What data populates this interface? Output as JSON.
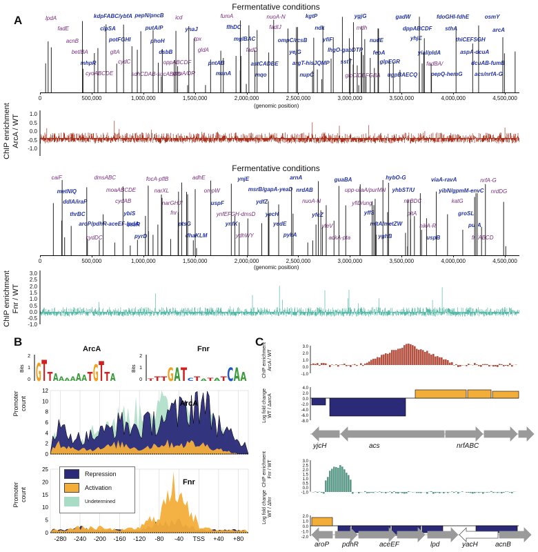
{
  "panels": {
    "a": "A",
    "b": "B",
    "c": "C"
  },
  "panel_a": {
    "title_top": "Fermentative conditions",
    "title_bottom": "Fermentative conditions",
    "xlabel": "(genomic position)",
    "ylabel_arca": "ChIP enrichment\nArcA / WT",
    "ylabel_fnr": "ChIP enrichment\nFnr / WT",
    "xticks": [
      "0",
      "500,000",
      "1,000,000",
      "1,500,000",
      "2,000,000",
      "2,500,000",
      "3,000,000",
      "3,500,000",
      "4,000,000",
      "4,500,000"
    ],
    "arca_yticks": [
      "1.0",
      "0.5",
      "0.0",
      "-0.5",
      "-1.0"
    ],
    "fnr_yticks": [
      "3.0",
      "2.5",
      "2.0",
      "1.5",
      "1.0",
      "0.5",
      "0.0",
      "-0.5",
      "-1.0"
    ],
    "arca_genes": [
      {
        "t": "lpdA",
        "s": "p"
      },
      {
        "t": "fadE",
        "s": "p"
      },
      {
        "t": "acnB",
        "s": "p"
      },
      {
        "t": "betIBA",
        "s": "p"
      },
      {
        "t": "mhpR",
        "s": "b"
      },
      {
        "t": "cyoABCDE",
        "s": "p"
      },
      {
        "t": "kdpFABC/ybfA",
        "s": "b"
      },
      {
        "t": "clpSA",
        "s": "b"
      },
      {
        "t": "potFGHI",
        "s": "b"
      },
      {
        "t": "gltA",
        "s": "p"
      },
      {
        "t": "cydC",
        "s": "p"
      },
      {
        "t": "sdhCDAB-sucABCD",
        "s": "p"
      },
      {
        "t": "pepN/pncB",
        "s": "b"
      },
      {
        "t": "putA/P",
        "s": "b"
      },
      {
        "t": "phoH",
        "s": "b"
      },
      {
        "t": "dsbB",
        "s": "b"
      },
      {
        "t": "oppABCDF",
        "s": "p"
      },
      {
        "t": "puuA/DR",
        "s": "p"
      },
      {
        "t": "icd",
        "s": "p"
      },
      {
        "t": "ynaJ",
        "s": "b"
      },
      {
        "t": "tpx",
        "s": "p"
      },
      {
        "t": "gldA",
        "s": "p"
      },
      {
        "t": "pntAB",
        "s": "b"
      },
      {
        "t": "manA",
        "s": "b"
      },
      {
        "t": "fumA",
        "s": "p"
      },
      {
        "t": "flhDC",
        "s": "b"
      },
      {
        "t": "mglBAC",
        "s": "b"
      },
      {
        "t": "fadD",
        "s": "p"
      },
      {
        "t": "astCADBE",
        "s": "b"
      },
      {
        "t": "mqo",
        "s": "b"
      },
      {
        "t": "nuoA-N",
        "s": "p"
      },
      {
        "t": "fadIJ",
        "s": "p"
      },
      {
        "t": "ompC/rcsB",
        "s": "b"
      },
      {
        "t": "yejG",
        "s": "b"
      },
      {
        "t": "argT-hisJQMP",
        "s": "b"
      },
      {
        "t": "nupC",
        "s": "b"
      },
      {
        "t": "kgtP",
        "s": "b"
      },
      {
        "t": "ndk",
        "s": "b"
      },
      {
        "t": "yfiF",
        "s": "b"
      },
      {
        "t": "lhgO-gabDTP",
        "s": "b"
      },
      {
        "t": "sstT",
        "s": "b"
      },
      {
        "t": "glcC/DEFGBA",
        "s": "p"
      },
      {
        "t": "ygjG",
        "s": "b"
      },
      {
        "t": "mdh",
        "s": "p"
      },
      {
        "t": "nudE",
        "s": "b"
      },
      {
        "t": "feoA",
        "s": "b"
      },
      {
        "t": "glpEGR",
        "s": "b"
      },
      {
        "t": "ugpBAECQ",
        "s": "b"
      },
      {
        "t": "gadW",
        "s": "b"
      },
      {
        "t": "dppABCDF",
        "s": "b"
      },
      {
        "t": "yhjE",
        "s": "b"
      },
      {
        "t": "yiaI/pldA",
        "s": "b"
      },
      {
        "t": "fadBA/",
        "s": "p"
      },
      {
        "t": "pepQ-hemG",
        "s": "b"
      },
      {
        "t": "fdoGHI-fdhE",
        "s": "b"
      },
      {
        "t": "sthA",
        "s": "b"
      },
      {
        "t": "thiCEFSGH",
        "s": "b"
      },
      {
        "t": "aspA-dcuA",
        "s": "b"
      },
      {
        "t": "dcuAB-fumB",
        "s": "b"
      },
      {
        "t": "acs/nrfA-G",
        "s": "b"
      },
      {
        "t": "osmY",
        "s": "b"
      },
      {
        "t": "arcA",
        "s": "b"
      }
    ],
    "fnr_genes": [
      {
        "t": "caiF",
        "s": "p"
      },
      {
        "t": "metNIQ",
        "s": "b"
      },
      {
        "t": "ddlA/iraP",
        "s": "b"
      },
      {
        "t": "thrBC",
        "s": "b"
      },
      {
        "t": "aroP/pdhR-aceEF-lpdA",
        "s": "b"
      },
      {
        "t": "cydDC",
        "s": "p"
      },
      {
        "t": "dmsABC",
        "s": "p"
      },
      {
        "t": "moaABCDE",
        "s": "p"
      },
      {
        "t": "cydAB",
        "s": "p"
      },
      {
        "t": "ybiS",
        "s": "b"
      },
      {
        "t": "bssR",
        "s": "b"
      },
      {
        "t": "pyrD",
        "s": "b"
      },
      {
        "t": "focA-pflB",
        "s": "p"
      },
      {
        "t": "narXL",
        "s": "p"
      },
      {
        "t": "narGHJI",
        "s": "p"
      },
      {
        "t": "fnr",
        "s": "p"
      },
      {
        "t": "ptsG",
        "s": "b"
      },
      {
        "t": "dhaKLM",
        "s": "b"
      },
      {
        "t": "adhE",
        "s": "p"
      },
      {
        "t": "ompW",
        "s": "p"
      },
      {
        "t": "uspF",
        "s": "b"
      },
      {
        "t": "ynfEFGH-dmsD",
        "s": "p"
      },
      {
        "t": "ynfK",
        "s": "b"
      },
      {
        "t": "ydhWY",
        "s": "p"
      },
      {
        "t": "ynjE",
        "s": "b"
      },
      {
        "t": "msrB/gapA-yeaD",
        "s": "b"
      },
      {
        "t": "ydfZ",
        "s": "b"
      },
      {
        "t": "yecH",
        "s": "b"
      },
      {
        "t": "yedE",
        "s": "b"
      },
      {
        "t": "pykA",
        "s": "b"
      },
      {
        "t": "arnA",
        "s": "b"
      },
      {
        "t": "nrdAB",
        "s": "b"
      },
      {
        "t": "nuoA-N",
        "s": "p"
      },
      {
        "t": "yfcZ",
        "s": "b"
      },
      {
        "t": "yfeV",
        "s": "p"
      },
      {
        "t": "ackA-pta",
        "s": "p"
      },
      {
        "t": "guaBA",
        "s": "b"
      },
      {
        "t": "upp-uraA/purMN",
        "s": "p"
      },
      {
        "t": "yfiD/ung",
        "s": "p"
      },
      {
        "t": "yffS",
        "s": "b"
      },
      {
        "t": "mltA/metZW",
        "s": "b"
      },
      {
        "t": "yghB",
        "s": "b"
      },
      {
        "t": "hybO-G",
        "s": "b"
      },
      {
        "t": "yhbST/U",
        "s": "b"
      },
      {
        "t": "nirBDC",
        "s": "p"
      },
      {
        "t": "pitA",
        "s": "p"
      },
      {
        "t": "nikA-R",
        "s": "p"
      },
      {
        "t": "uspB",
        "s": "b"
      },
      {
        "t": "viaA-ravA",
        "s": "b"
      },
      {
        "t": "yibN/gpmM-envC",
        "s": "b"
      },
      {
        "t": "katG",
        "s": "p"
      },
      {
        "t": "groSL",
        "s": "b"
      },
      {
        "t": "purA",
        "s": "b"
      },
      {
        "t": "frdABCD",
        "s": "p"
      },
      {
        "t": "nrfA-G",
        "s": "p"
      },
      {
        "t": "nrdDG",
        "s": "p"
      }
    ]
  },
  "panel_b": {
    "motif_arca": "ArcA",
    "motif_fnr": "Fnr",
    "bits_label": "Bits",
    "motif_yticks": [
      "2",
      "1",
      "0"
    ],
    "chart_arca_title": "ArcA",
    "chart_fnr_title": "Fnr",
    "ylabel": "Promoter\ncount",
    "xticks": [
      "-280",
      "-240",
      "-200",
      "-160",
      "-120",
      "-80",
      "-40",
      "TSS",
      "+40",
      "+80"
    ],
    "arca_yticks": [
      "12",
      "10",
      "8",
      "6",
      "4",
      "2",
      "0"
    ],
    "fnr_yticks": [
      "25",
      "20",
      "15",
      "10",
      "5",
      "0"
    ],
    "legend": {
      "repression": "Repression",
      "activation": "Activation",
      "undetermined": "Undetermined"
    },
    "colors": {
      "repression": "#2b2a78",
      "activation": "#f3ae3a",
      "undetermined": "#a8dcc4"
    }
  },
  "panel_c": {
    "ylab1": "ChIP enrichment\nArcA / WT",
    "ylab2": "Log fold change\nWT / ΔarcA",
    "ylab3": "ChIP enrichment\nFnr / WT",
    "ylab4": "Log fold change\nWT / Δfnr",
    "yticks1": [
      "3.0",
      "2.0",
      "1.0",
      "0.0",
      "-1.0"
    ],
    "yticks2": [
      "4.0",
      "2.0",
      "0.0",
      "-2.0",
      "-4.0",
      "-6.0",
      "-8.0"
    ],
    "yticks3": [
      "3.0",
      "2.5",
      "2.0",
      "1.5",
      "1.0",
      "0.5",
      "0.0",
      "-1.0"
    ],
    "yticks4": [
      "2.0",
      "1.0",
      "0.0",
      "-1.0",
      "-2.0"
    ],
    "genes_top": [
      "yjcH",
      "acs",
      "nrfABC"
    ],
    "genes_bottom": [
      "aroP",
      "pdhR",
      "aceEF",
      "lpd",
      "yacH",
      "acnB"
    ]
  },
  "chart_data": [
    {
      "type": "area",
      "title": "ArcA",
      "xlabel": "",
      "ylabel": "Promoter count",
      "x": [
        -280,
        -240,
        -200,
        -160,
        -120,
        -80,
        -40,
        0,
        40,
        80
      ],
      "series": [
        {
          "name": "Repression",
          "values": [
            5,
            3,
            4,
            6,
            5,
            7,
            8,
            11,
            6,
            2
          ]
        },
        {
          "name": "Activation",
          "values": [
            2,
            1,
            1,
            2,
            1,
            2,
            2,
            2,
            1,
            0
          ]
        },
        {
          "name": "Undetermined",
          "values": [
            4,
            3,
            5,
            7,
            8,
            9,
            8,
            10,
            5,
            1
          ]
        }
      ],
      "ylim": [
        0,
        12
      ]
    },
    {
      "type": "area",
      "title": "Fnr",
      "xlabel": "",
      "ylabel": "Promoter count",
      "x": [
        -280,
        -240,
        -200,
        -160,
        -120,
        -80,
        -40,
        0,
        40,
        80
      ],
      "series": [
        {
          "name": "Repression",
          "values": [
            1,
            2,
            1,
            1,
            1,
            4,
            4,
            1,
            1,
            1
          ]
        },
        {
          "name": "Activation",
          "values": [
            1,
            2,
            2,
            1,
            2,
            8,
            21,
            2,
            1,
            1
          ]
        },
        {
          "name": "Undetermined",
          "values": [
            0,
            1,
            0,
            0,
            1,
            1,
            1,
            0,
            0,
            0
          ]
        }
      ],
      "ylim": [
        0,
        25
      ]
    }
  ]
}
